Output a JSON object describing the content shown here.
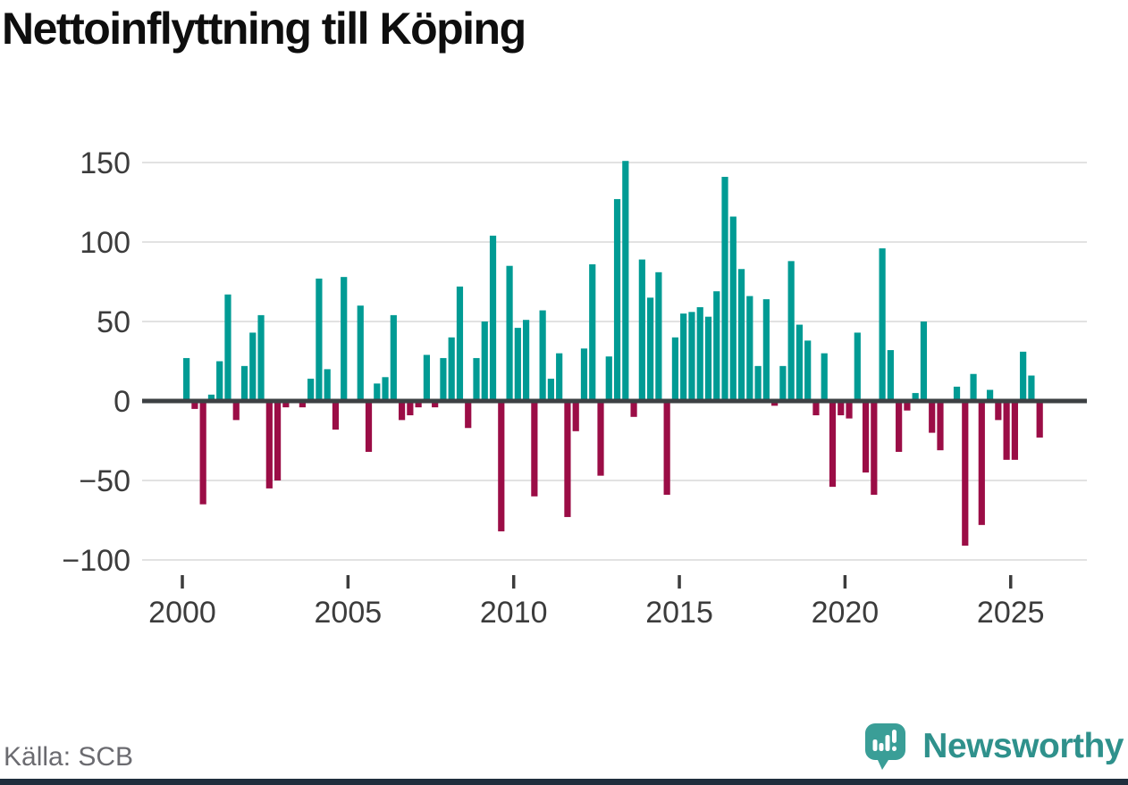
{
  "title": "Nettoinflyttning till Köping",
  "footer": {
    "source": "Källa: SCB",
    "brand": "Newsworthy"
  },
  "colors": {
    "positive": "#009b94",
    "negative": "#9b0d46",
    "axis_line": "#3d4043",
    "gridline": "#e2e2e2",
    "tick_label": "#3c3c3c",
    "title_text": "#0e0e0e",
    "source_text": "#6b6b70",
    "brand_teal": "#2f918c",
    "logo_bubble": "#3a9e97",
    "bottom_bar": "#1f2e3d"
  },
  "chart_data": {
    "type": "bar",
    "title": "Nettoinflyttning till Köping",
    "frequency": "quarterly",
    "x_start_year": 2000,
    "x_end_period": "2025 Q4",
    "xtick_years": [
      2000,
      2005,
      2010,
      2015,
      2020,
      2025
    ],
    "yticks": [
      150,
      100,
      50,
      0,
      -50,
      -100
    ],
    "ylim": [
      -100,
      150
    ],
    "grid": true,
    "legend": false,
    "values": [
      27,
      -5,
      -65,
      4,
      25,
      67,
      -12,
      22,
      43,
      54,
      -55,
      -50,
      -4,
      0,
      -4,
      14,
      77,
      20,
      -18,
      78,
      0,
      60,
      -32,
      11,
      15,
      54,
      -12,
      -9,
      -4,
      29,
      -4,
      27,
      40,
      72,
      -17,
      27,
      50,
      104,
      -82,
      85,
      46,
      51,
      -60,
      57,
      14,
      30,
      -73,
      -19,
      33,
      86,
      -47,
      28,
      127,
      151,
      -10,
      89,
      65,
      81,
      -59,
      40,
      55,
      56,
      59,
      53,
      69,
      141,
      116,
      83,
      66,
      22,
      64,
      -3,
      22,
      88,
      48,
      38,
      -9,
      30,
      -54,
      -9,
      -11,
      43,
      -45,
      -59,
      96,
      32,
      -32,
      -6,
      5,
      50,
      -20,
      -31,
      0,
      9,
      -91,
      17,
      -78,
      7,
      -12,
      -37,
      -37,
      31,
      16,
      -23
    ]
  }
}
